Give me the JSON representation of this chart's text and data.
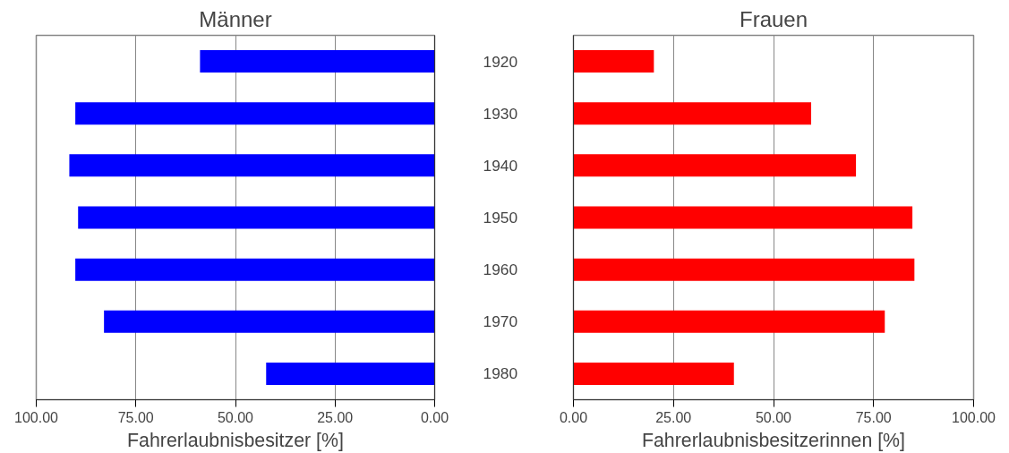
{
  "chart_data": [
    {
      "type": "bar",
      "orientation": "horizontal",
      "title": "Männer",
      "xlabel": "Fahrerlaubnisbesitzer [%]",
      "categories": [
        "1920",
        "1930",
        "1940",
        "1950",
        "1960",
        "1970",
        "1980"
      ],
      "values": [
        58.9,
        90.2,
        91.7,
        89.5,
        90.2,
        83.0,
        42.3
      ],
      "color": "#0000ff",
      "xlim": [
        100,
        0
      ],
      "xticks": [
        {
          "value": 100,
          "label": "100.00"
        },
        {
          "value": 75,
          "label": "75.00"
        },
        {
          "value": 50,
          "label": "50.00"
        },
        {
          "value": 25,
          "label": "25.00"
        },
        {
          "value": 0,
          "label": "0.00"
        }
      ],
      "grid": "x"
    },
    {
      "type": "bar",
      "orientation": "horizontal",
      "title": "Frauen",
      "xlabel": "Fahrerlaubnisbesitzerinnen [%]",
      "categories": [
        "1920",
        "1930",
        "1940",
        "1950",
        "1960",
        "1970",
        "1980"
      ],
      "values": [
        20.1,
        59.4,
        70.6,
        84.7,
        85.2,
        77.8,
        40.1
      ],
      "color": "#ff0000",
      "xlim": [
        0,
        100
      ],
      "xticks": [
        {
          "value": 0,
          "label": "0.00"
        },
        {
          "value": 25,
          "label": "25.00"
        },
        {
          "value": 50,
          "label": "50.00"
        },
        {
          "value": 75,
          "label": "75.00"
        },
        {
          "value": 100,
          "label": "100.00"
        }
      ],
      "grid": "x",
      "tick_labels": "x"
    }
  ]
}
